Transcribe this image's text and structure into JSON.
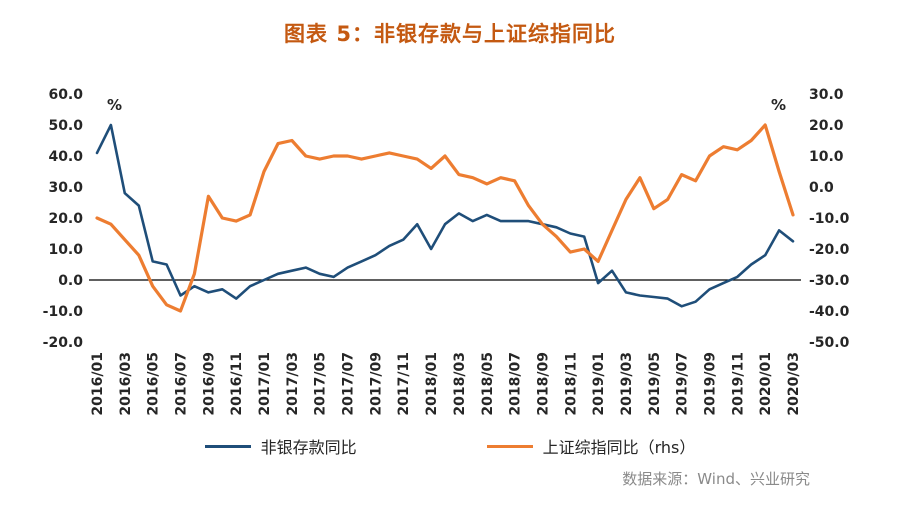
{
  "title": "图表 5：非银存款与上证综指同比",
  "source_note": "数据来源：Wind、兴业研究",
  "colors": {
    "title_text": "#C45911",
    "axis_text": "#262626",
    "zero_line": "#000000",
    "source_text": "#8A8A8A",
    "series_blue": "#1F4E79",
    "series_orange": "#ED7D31"
  },
  "chart_data": {
    "type": "line",
    "title": "图表 5：非银存款与上证综指同比",
    "grid": false,
    "legend_position": "bottom",
    "x_tick_every": 2,
    "left_axis": {
      "label": "%",
      "max": 60,
      "min": -20,
      "step": 10
    },
    "right_axis": {
      "label": "%",
      "max": 30,
      "min": -50,
      "step": 10
    },
    "categories": [
      "2016/01",
      "2016/02",
      "2016/03",
      "2016/04",
      "2016/05",
      "2016/06",
      "2016/07",
      "2016/08",
      "2016/09",
      "2016/10",
      "2016/11",
      "2016/12",
      "2017/01",
      "2017/02",
      "2017/03",
      "2017/04",
      "2017/05",
      "2017/06",
      "2017/07",
      "2017/08",
      "2017/09",
      "2017/10",
      "2017/11",
      "2017/12",
      "2018/01",
      "2018/02",
      "2018/03",
      "2018/04",
      "2018/05",
      "2018/06",
      "2018/07",
      "2018/08",
      "2018/09",
      "2018/10",
      "2018/11",
      "2018/12",
      "2019/01",
      "2019/02",
      "2019/03",
      "2019/04",
      "2019/05",
      "2019/06",
      "2019/07",
      "2019/08",
      "2019/09",
      "2019/10",
      "2019/11",
      "2019/12",
      "2020/01",
      "2020/02",
      "2020/03"
    ],
    "series": [
      {
        "name": "非银存款同比",
        "axis": "left",
        "color": "#1F4E79",
        "width": 2.6,
        "values": [
          41,
          50,
          28,
          24,
          6,
          5,
          -5,
          -2,
          -4,
          -3,
          -6,
          -2,
          0,
          2,
          3,
          4,
          2,
          1,
          4,
          6,
          8,
          11,
          13,
          18,
          10,
          18,
          21.5,
          19,
          21,
          19,
          19,
          19,
          18,
          17,
          15,
          14,
          -1,
          3,
          -4,
          -5,
          -5.5,
          -6,
          -8.5,
          -7,
          -3,
          -1,
          1,
          5,
          8,
          16,
          12.5
        ]
      },
      {
        "name": "上证综指同比（rhs）",
        "axis": "right",
        "color": "#ED7D31",
        "width": 3.2,
        "values": [
          -10,
          -12,
          -17,
          -22,
          -32,
          -38,
          -40,
          -28,
          -3,
          -10,
          -11,
          -9,
          5,
          14,
          15,
          10,
          9,
          10,
          10,
          9,
          10,
          11,
          10,
          9,
          6,
          10,
          4,
          3,
          1,
          3,
          2,
          -6,
          -12,
          -16,
          -21,
          -20,
          -24,
          -14,
          -4,
          3,
          -7,
          -4,
          4,
          2,
          10,
          13,
          12,
          15,
          20,
          5,
          -9
        ]
      }
    ]
  }
}
